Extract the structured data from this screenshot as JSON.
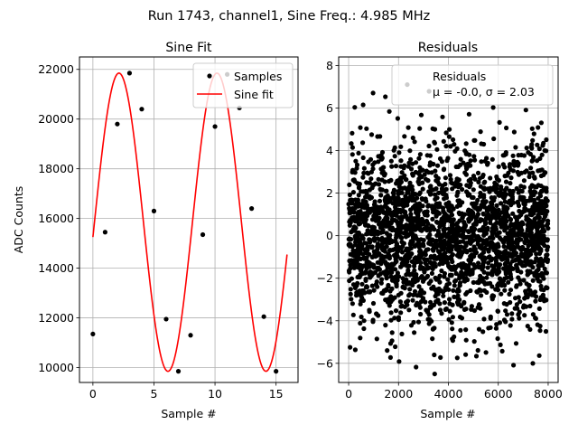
{
  "figure_title": "Run 1743, channel1, Sine Freq.: 4.985 MHz",
  "chart_data": [
    {
      "type": "line+scatter",
      "title": "Sine Fit",
      "xlabel": "Sample #",
      "ylabel": "ADC Counts",
      "xlim": [
        -1.1,
        16.8
      ],
      "ylim": [
        9400,
        22500
      ],
      "xticks": [
        0,
        5,
        10,
        15
      ],
      "yticks": [
        10000,
        12000,
        14000,
        16000,
        18000,
        20000,
        22000
      ],
      "grid": true,
      "legend_position": "top-right",
      "series": [
        {
          "name": "Samples",
          "kind": "scatter",
          "color": "#000000",
          "x": [
            0,
            1,
            2,
            3,
            4,
            5,
            6,
            7,
            8,
            9,
            10,
            11,
            12,
            13,
            14,
            15
          ],
          "y": [
            11350,
            15450,
            19800,
            21850,
            20400,
            16300,
            11950,
            9850,
            11300,
            15350,
            19700,
            21800,
            20450,
            16400,
            12050,
            9850
          ]
        },
        {
          "name": "Sine fit",
          "kind": "line",
          "color": "#ff0000",
          "model": "y = offset + amplitude * sin(2*pi*frequency*x + phase)",
          "offset": 15850,
          "amplitude": 6000,
          "frequency": 0.1246,
          "phase": -0.1,
          "x_range": [
            0,
            15.9
          ]
        }
      ]
    },
    {
      "type": "scatter",
      "title": "Residuals",
      "xlabel": "Sample #",
      "ylabel": "",
      "xlim": [
        -400,
        8400
      ],
      "ylim": [
        -6.9,
        8.4
      ],
      "xticks": [
        0,
        2000,
        4000,
        6000,
        8000
      ],
      "yticks": [
        -6,
        -4,
        -2,
        0,
        2,
        4,
        6,
        8
      ],
      "grid": true,
      "legend_position": "top-right",
      "legend_label": "Residuals",
      "legend_stats": "μ = -0.0, σ = 2.03",
      "series": [
        {
          "name": "Residuals",
          "color": "#000000",
          "n_points": 8000,
          "x_range": [
            0,
            7999
          ],
          "mean": -0.0,
          "std": 2.03,
          "min": -6.5,
          "max": 7.1
        }
      ]
    }
  ]
}
